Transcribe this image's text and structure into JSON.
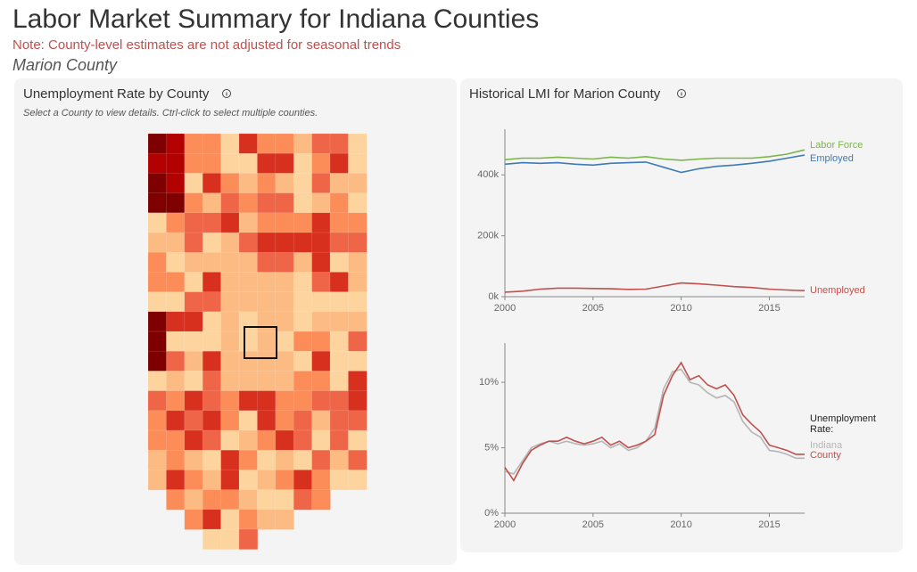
{
  "header": {
    "title": "Labor Market Summary for Indiana Counties",
    "note": "Note: County-level estimates are not adjusted for seasonal trends",
    "county": "Marion County"
  },
  "panels": [
    {
      "title": "Unemployment Rate by County",
      "subtitle": "Select a County to view details. Ctrl-click to select multiple counties."
    },
    {
      "title": "Historical LMI for Marion County"
    }
  ],
  "chart_data": [
    {
      "type": "line",
      "legend": "end",
      "x": [
        2000,
        2001,
        2002,
        2003,
        2004,
        2005,
        2006,
        2007,
        2008,
        2009,
        2010,
        2011,
        2012,
        2013,
        2014,
        2015,
        2016,
        2017
      ],
      "series": [
        {
          "name": "Labor Force",
          "color": "#7ab648",
          "values": [
            450000,
            455000,
            455000,
            458000,
            455000,
            452000,
            458000,
            455000,
            460000,
            452000,
            448000,
            452000,
            455000,
            455000,
            455000,
            460000,
            468000,
            482000
          ]
        },
        {
          "name": "Employed",
          "color": "#3d7ab8",
          "values": [
            435000,
            440000,
            438000,
            440000,
            435000,
            432000,
            438000,
            440000,
            442000,
            425000,
            408000,
            420000,
            428000,
            432000,
            438000,
            445000,
            455000,
            465000
          ]
        },
        {
          "name": "Unemployed",
          "color": "#c0504d",
          "values": [
            15000,
            18000,
            25000,
            28000,
            28000,
            27000,
            26000,
            24000,
            25000,
            35000,
            45000,
            42000,
            38000,
            33000,
            30000,
            25000,
            22000,
            20000
          ]
        }
      ],
      "xlim": [
        2000,
        2017
      ],
      "xticks": [
        2000,
        2005,
        2010,
        2015
      ],
      "ylim": [
        0,
        550000
      ],
      "yticks": [
        {
          "value": 0,
          "label": "0k"
        },
        {
          "value": 200000,
          "label": "200k"
        },
        {
          "value": 400000,
          "label": "400k"
        }
      ]
    },
    {
      "type": "line",
      "legend": "right",
      "legend_title": "Unemployment Rate:",
      "x": [
        2000,
        2000.5,
        2001,
        2001.5,
        2002,
        2002.5,
        2003,
        2003.5,
        2004,
        2004.5,
        2005,
        2005.5,
        2006,
        2006.5,
        2007,
        2007.5,
        2008,
        2008.5,
        2009,
        2009.5,
        2010,
        2010.5,
        2011,
        2011.5,
        2012,
        2012.5,
        2013,
        2013.5,
        2014,
        2014.5,
        2015,
        2015.5,
        2016,
        2016.5,
        2017
      ],
      "series": [
        {
          "name": "Indiana",
          "color": "#b5b5b5",
          "values": [
            3.2,
            3.0,
            4.0,
            5.0,
            5.3,
            5.5,
            5.3,
            5.5,
            5.3,
            5.2,
            5.3,
            5.5,
            5.0,
            5.3,
            4.8,
            5.0,
            5.5,
            6.5,
            9.5,
            10.8,
            11.0,
            10.0,
            9.8,
            9.2,
            8.8,
            9.0,
            8.5,
            7.0,
            6.2,
            5.8,
            4.8,
            4.7,
            4.5,
            4.2,
            4.2
          ]
        },
        {
          "name": "County",
          "color": "#c0504d",
          "values": [
            3.5,
            2.5,
            3.8,
            4.8,
            5.2,
            5.5,
            5.5,
            5.8,
            5.5,
            5.3,
            5.5,
            5.8,
            5.2,
            5.5,
            5.0,
            5.2,
            5.5,
            6.0,
            9.0,
            10.5,
            11.5,
            10.2,
            10.5,
            9.8,
            9.5,
            9.8,
            9.0,
            7.5,
            6.8,
            6.2,
            5.2,
            5.0,
            4.8,
            4.5,
            4.5
          ]
        }
      ],
      "xlim": [
        2000,
        2017
      ],
      "xticks": [
        2000,
        2005,
        2010,
        2015
      ],
      "ylim": [
        0,
        13
      ],
      "yticks": [
        {
          "value": 0,
          "label": "0%"
        },
        {
          "value": 5,
          "label": "5%"
        },
        {
          "value": 10,
          "label": "10%"
        }
      ]
    }
  ]
}
